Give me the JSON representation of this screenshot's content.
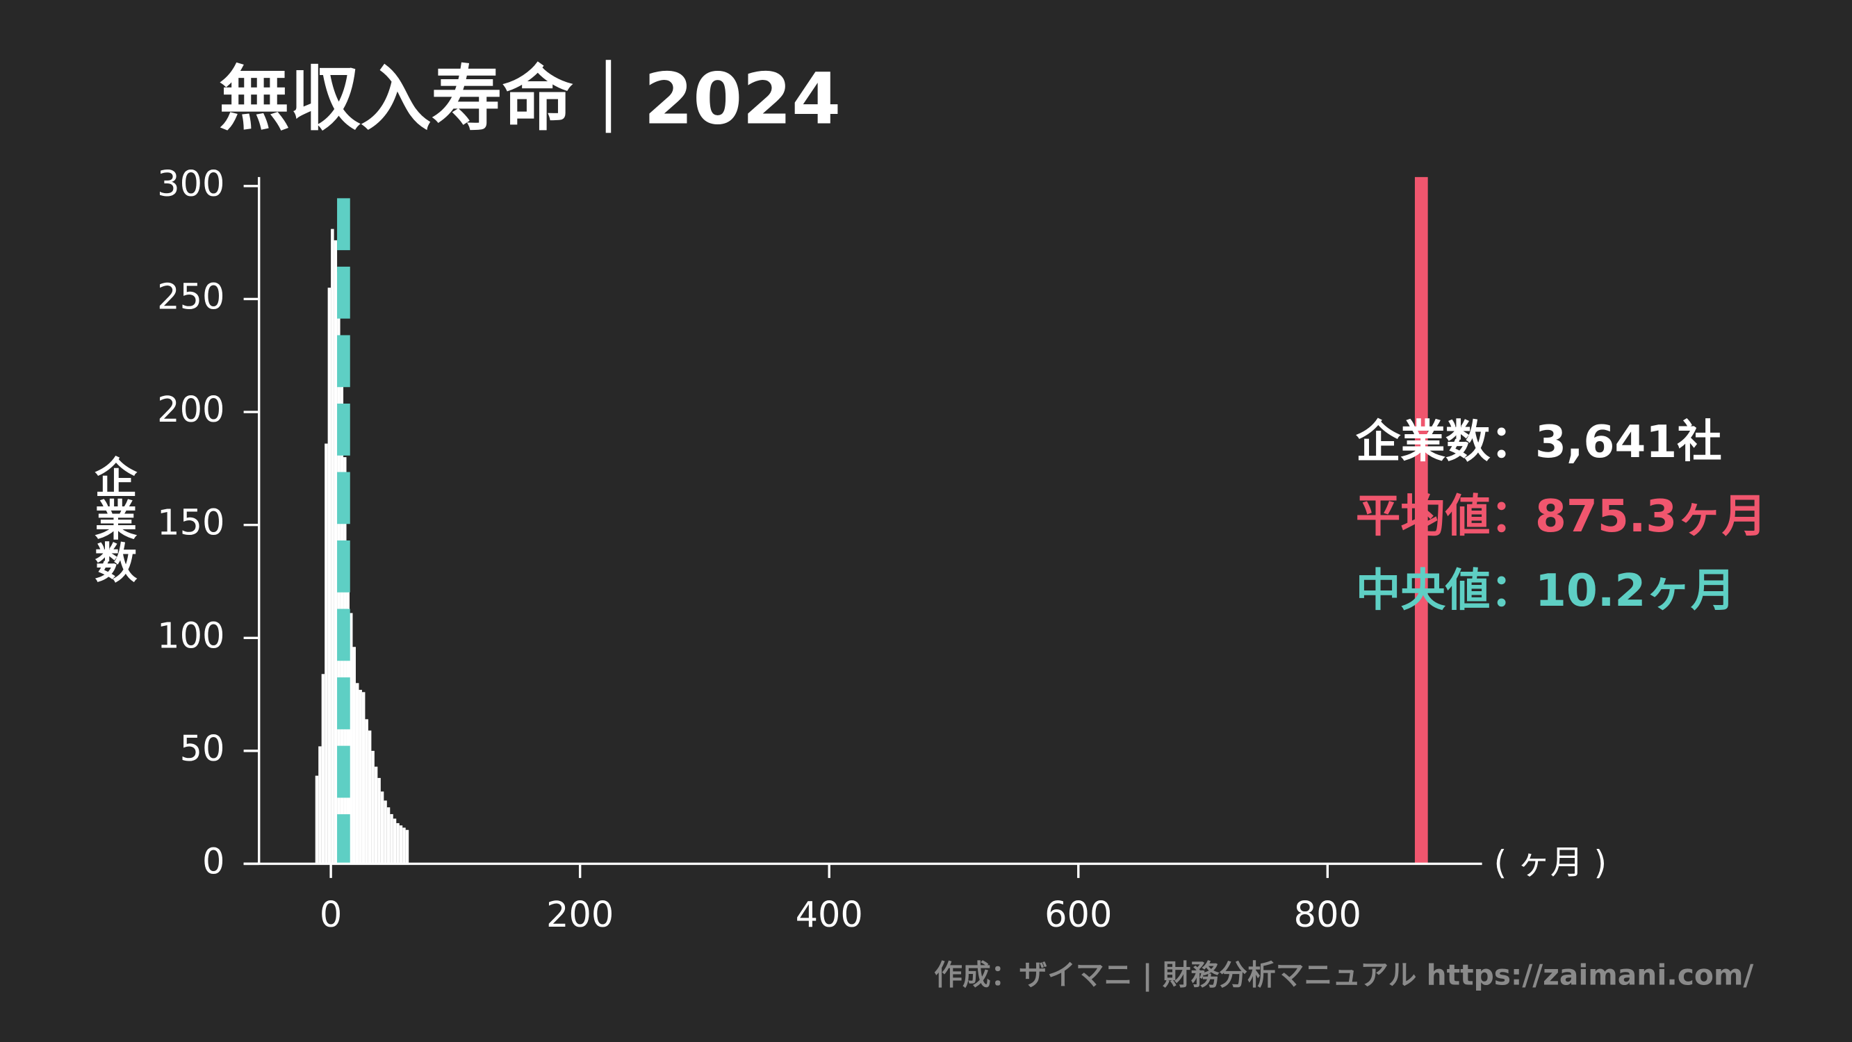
{
  "chart_data": {
    "type": "histogram",
    "title": "無収入寿命｜2024",
    "y_label": "企業数",
    "x_unit_label": "( ヶ月 )",
    "bins": [
      -12.5,
      -10,
      -7.5,
      -5,
      -2.5,
      0,
      2.5,
      5,
      7.5,
      10,
      12.5,
      15,
      17.5,
      20,
      22.5,
      25,
      27.5,
      30,
      32.5,
      35,
      37.5,
      40,
      42.5,
      45,
      47.5,
      50,
      52.5,
      55,
      57.5,
      60,
      62.5
    ],
    "values": [
      39,
      52,
      84,
      186,
      255,
      281,
      276,
      262,
      220,
      180,
      142,
      111,
      96,
      80,
      77,
      76,
      64,
      59,
      50,
      43,
      38,
      32,
      28,
      25,
      22,
      20,
      18,
      17,
      16,
      15
    ],
    "color": "#ffffff",
    "mean": 875.3,
    "mean_color": "#f0566e",
    "median": 10.2,
    "median_color": "#5ecfc4",
    "annotations": [
      {
        "text": "企業数：3,641社",
        "color": "#ffffff"
      },
      {
        "text": "平均値：875.3ヶ月",
        "color": "#f0566e"
      },
      {
        "text": "中央値：10.2ヶ月",
        "color": "#5ecfc4"
      }
    ],
    "credit": "作成：ザイマニ | 財務分析マニュアル https://zaimani.com/",
    "xlim": [
      -70,
      924
    ],
    "ylim": [
      0,
      304
    ],
    "xticks": [
      0,
      200,
      400,
      600,
      800
    ],
    "yticks": [
      0,
      50,
      100,
      150,
      200,
      250,
      300
    ]
  }
}
